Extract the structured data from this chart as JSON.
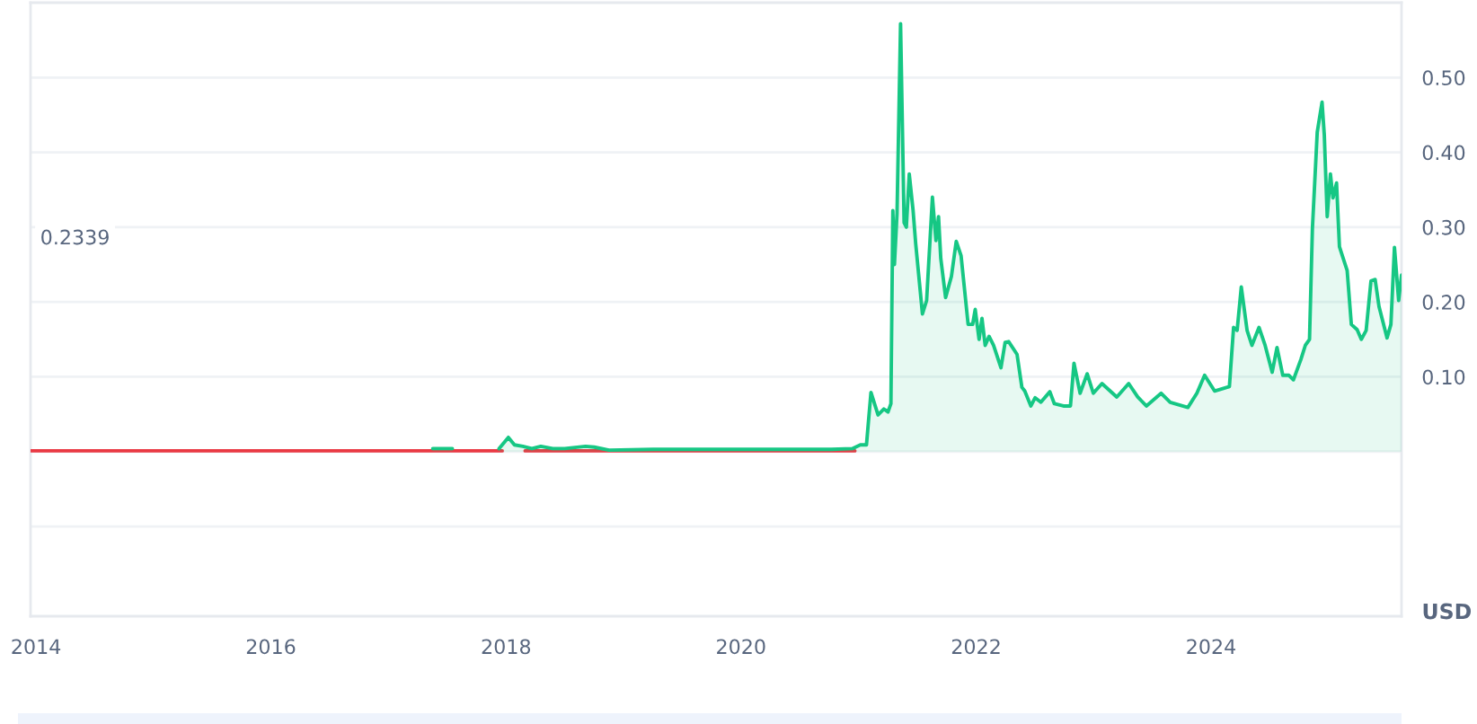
{
  "chart_data": {
    "type": "area",
    "ylabel": "USD",
    "annotations": [
      "0.2339"
    ],
    "xlim": [
      "2013-12-15",
      "2025-08-15"
    ],
    "xticks": [
      "2014",
      "2016",
      "2018",
      "2020",
      "2022",
      "2024"
    ],
    "ylim": [
      -0.22,
      0.6
    ],
    "yticks": [
      {
        "value": -0.1,
        "label": null
      },
      {
        "value": 0,
        "label": null
      },
      {
        "value": 0.1,
        "label": "0.10"
      },
      {
        "value": 0.2,
        "label": "0.20"
      },
      {
        "value": 0.3,
        "label": "0.30"
      },
      {
        "value": 0.4,
        "label": "0.40"
      },
      {
        "value": 0.5,
        "label": "0.50"
      }
    ],
    "grid": "y",
    "series": [
      {
        "type": "line",
        "color": "#ea3943",
        "x": [
          "2013-12-15",
          "2015-06-01",
          "2017-05-18",
          "2017-12-20",
          "2018-01-20",
          "2018-03-01",
          "2019-06-01",
          "2020-12-20"
        ],
        "values": [
          0.001,
          0.001,
          0.001,
          0.001,
          null,
          0.001,
          0.001,
          0.001
        ]
      },
      {
        "color": "#16c784",
        "x": [
          "2017-05-18",
          "2017-07-18",
          "2017-08-15",
          "2017-12-10",
          "2018-01-08",
          "2018-01-27",
          "2018-02-22",
          "2018-03-22",
          "2018-04-19",
          "2018-05-26",
          "2018-07-02",
          "2018-09-05",
          "2018-10-02",
          "2018-11-17",
          "2019-04-04",
          "2019-10-05",
          "2020-04-07",
          "2020-10-08",
          "2020-12-12",
          "2021-01-06",
          "2021-01-25",
          "2021-02-08",
          "2021-03-02",
          "2021-03-20",
          "2021-04-02",
          "2021-04-11",
          "2021-04-17",
          "2021-04-22",
          "2021-04-30",
          "2021-05-11",
          "2021-05-22",
          "2021-05-29",
          "2021-06-07",
          "2021-06-19",
          "2021-06-27",
          "2021-07-18",
          "2021-07-31",
          "2021-08-18",
          "2021-08-29",
          "2021-09-06",
          "2021-09-13",
          "2021-09-28",
          "2021-10-16",
          "2021-10-31",
          "2021-11-15",
          "2021-12-07",
          "2021-12-21",
          "2021-12-29",
          "2022-01-10",
          "2022-01-19",
          "2022-01-29",
          "2022-02-10",
          "2022-02-24",
          "2022-03-19",
          "2022-04-01",
          "2022-04-12",
          "2022-05-08",
          "2022-05-23",
          "2022-06-01",
          "2022-06-20",
          "2022-07-03",
          "2022-07-21",
          "2022-08-18",
          "2022-09-01",
          "2022-09-29",
          "2022-10-21",
          "2022-11-01",
          "2022-11-20",
          "2022-12-12",
          "2022-12-31",
          "2023-01-27",
          "2023-03-14",
          "2023-04-20",
          "2023-05-18",
          "2023-06-14",
          "2023-07-30",
          "2023-08-27",
          "2023-10-21",
          "2023-11-18",
          "2023-12-12",
          "2024-01-12",
          "2024-02-27",
          "2024-03-11",
          "2024-03-22",
          "2024-04-04",
          "2024-04-22",
          "2024-05-07",
          "2024-05-29",
          "2024-06-17",
          "2024-07-09",
          "2024-07-24",
          "2024-08-11",
          "2024-08-30",
          "2024-09-13",
          "2024-10-06",
          "2024-10-20",
          "2024-11-02",
          "2024-11-11",
          "2024-11-26",
          "2024-12-11",
          "2024-12-18",
          "2024-12-27",
          "2025-01-06",
          "2025-01-14",
          "2025-01-25",
          "2025-02-03",
          "2025-02-12",
          "2025-02-27",
          "2025-03-12",
          "2025-03-30",
          "2025-04-12",
          "2025-04-27",
          "2025-05-12",
          "2025-05-25",
          "2025-06-06",
          "2025-07-01",
          "2025-07-13",
          "2025-07-24",
          "2025-08-06",
          "2025-08-15"
        ],
        "values": [
          0.004,
          0.004,
          null,
          0.004,
          0.019,
          0.009,
          0.007,
          0.004,
          0.007,
          0.004,
          0.004,
          0.007,
          0.006,
          0.002,
          0.003,
          0.003,
          0.003,
          0.003,
          0.004,
          0.009,
          0.009,
          0.079,
          0.049,
          0.057,
          0.053,
          0.064,
          0.322,
          0.25,
          0.318,
          0.572,
          0.306,
          0.3,
          0.371,
          0.322,
          0.278,
          0.184,
          0.202,
          0.34,
          0.282,
          0.314,
          0.258,
          0.206,
          0.234,
          0.281,
          0.262,
          0.17,
          0.17,
          0.19,
          0.15,
          0.178,
          0.142,
          0.154,
          0.142,
          0.112,
          0.146,
          0.147,
          0.13,
          0.086,
          0.081,
          0.061,
          0.072,
          0.066,
          0.08,
          0.064,
          0.061,
          0.061,
          0.118,
          0.078,
          0.104,
          0.078,
          0.091,
          0.073,
          0.091,
          0.073,
          0.061,
          0.078,
          0.066,
          0.059,
          0.078,
          0.102,
          0.081,
          0.087,
          0.166,
          0.162,
          0.22,
          0.162,
          0.142,
          0.166,
          0.142,
          0.106,
          0.139,
          0.102,
          0.102,
          0.096,
          0.123,
          0.142,
          0.15,
          0.298,
          0.427,
          0.467,
          0.423,
          0.314,
          0.371,
          0.339,
          0.359,
          0.274,
          0.262,
          0.242,
          0.17,
          0.163,
          0.15,
          0.162,
          0.228,
          0.23,
          0.194,
          0.152,
          0.17,
          0.273,
          0.202,
          0.236
        ]
      }
    ]
  }
}
